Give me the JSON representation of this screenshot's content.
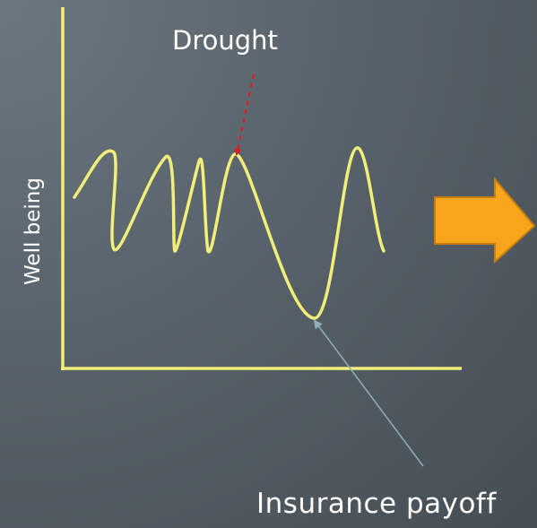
{
  "y_axis_label": "Well being",
  "annotations": {
    "drought": "Drought",
    "insurance_payoff": "Insurance payoff"
  },
  "colors": {
    "axes": "#f2ee7a",
    "curve": "#f2ee7a",
    "drought_arrow": "#e5191b",
    "payoff_arrow": "#8fb0b8",
    "block_arrow_fill": "#f9a51b",
    "block_arrow_stroke": "#c57d10",
    "text": "#ffffff"
  },
  "icons": {
    "block_arrow": "right-arrow-icon"
  }
}
